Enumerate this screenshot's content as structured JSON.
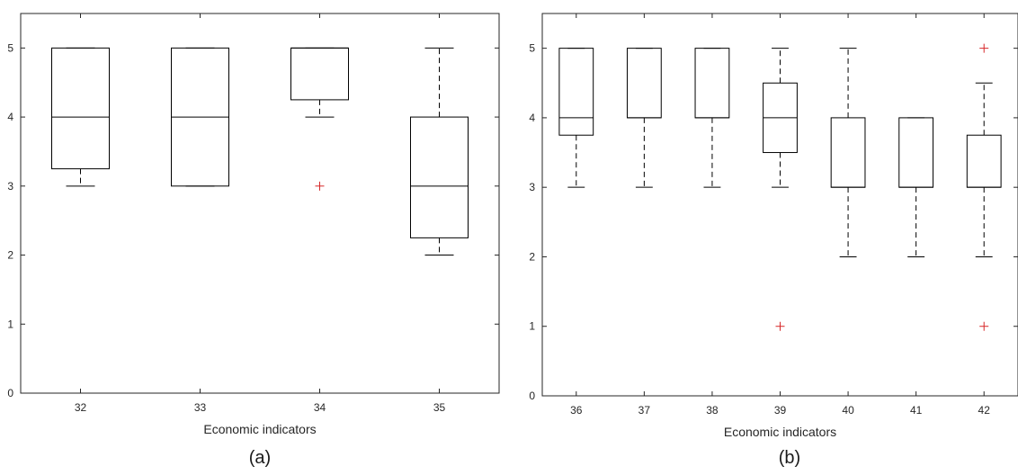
{
  "colors": {
    "box": "#000000",
    "whisker": "#000000",
    "outlier": "#d62728",
    "axis": "#262626"
  },
  "chart_data": [
    {
      "type": "boxplot",
      "caption": "(a)",
      "xlabel": "Economic indicators",
      "ylabel": "",
      "ylim": [
        0,
        5.5
      ],
      "yticks": [
        "0",
        "1",
        "2",
        "3",
        "4",
        "5"
      ],
      "categories": [
        "32",
        "33",
        "34",
        "35"
      ],
      "boxes": [
        {
          "min": 3,
          "q1": 3.25,
          "median": 4,
          "q3": 5,
          "max": 5,
          "outliers": []
        },
        {
          "min": 3,
          "q1": 3,
          "median": 4,
          "q3": 5,
          "max": 5,
          "outliers": []
        },
        {
          "min": 4,
          "q1": 4.25,
          "median": 5,
          "q3": 5,
          "max": 5,
          "outliers": [
            3
          ]
        },
        {
          "min": 2,
          "q1": 2.25,
          "median": 3,
          "q3": 4,
          "max": 5,
          "outliers": []
        }
      ]
    },
    {
      "type": "boxplot",
      "caption": "(b)",
      "xlabel": "Economic indicators",
      "ylabel": "",
      "ylim": [
        0,
        5.5
      ],
      "yticks": [
        "0",
        "1",
        "2",
        "3",
        "4",
        "5"
      ],
      "categories": [
        "36",
        "37",
        "38",
        "39",
        "40",
        "41",
        "42"
      ],
      "boxes": [
        {
          "min": 3,
          "q1": 3.75,
          "median": 4,
          "q3": 5,
          "max": 5,
          "outliers": []
        },
        {
          "min": 3,
          "q1": 4,
          "median": 4,
          "q3": 5,
          "max": 5,
          "outliers": []
        },
        {
          "min": 3,
          "q1": 4,
          "median": 4,
          "q3": 5,
          "max": 5,
          "outliers": []
        },
        {
          "min": 3,
          "q1": 3.5,
          "median": 4,
          "q3": 4.5,
          "max": 5,
          "outliers": [
            1
          ]
        },
        {
          "min": 2,
          "q1": 3,
          "median": 3,
          "q3": 4,
          "max": 5,
          "outliers": []
        },
        {
          "min": 2,
          "q1": 3,
          "median": 3,
          "q3": 4,
          "max": 4,
          "outliers": []
        },
        {
          "min": 2,
          "q1": 3,
          "median": 3,
          "q3": 3.75,
          "max": 4.5,
          "outliers": [
            1,
            5
          ]
        }
      ]
    }
  ]
}
